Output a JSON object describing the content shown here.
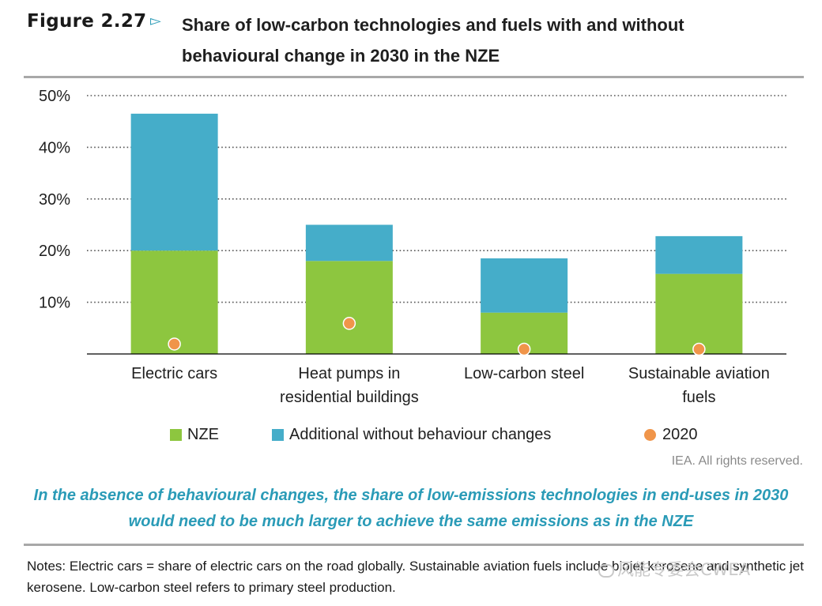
{
  "figure": {
    "number": "Figure 2.27",
    "arrow": "▻",
    "title_line1": "Share of low-carbon technologies and fuels with and without",
    "title_line2": "behavioural change in 2030 in the NZE"
  },
  "chart_data": {
    "type": "bar",
    "stacked": true,
    "categories": [
      [
        "Electric cars"
      ],
      [
        "Heat pumps in",
        "residential buildings"
      ],
      [
        "Low-carbon steel"
      ],
      [
        "Sustainable aviation",
        "fuels"
      ]
    ],
    "series": [
      {
        "name": "NZE",
        "kind": "bar",
        "color": "#8dc63f",
        "values": [
          20,
          18,
          8,
          15.5
        ]
      },
      {
        "name": "Additional without behaviour changes",
        "kind": "bar",
        "color": "#45adc9",
        "values": [
          26.5,
          7,
          10.5,
          7.3
        ]
      },
      {
        "name": "2020",
        "kind": "dot",
        "color": "#f0954a",
        "values": [
          1,
          5,
          0,
          0
        ]
      }
    ],
    "y_ticks": [
      "10%",
      "20%",
      "30%",
      "40%",
      "50%"
    ],
    "ylim": [
      0,
      50
    ],
    "grid": true,
    "legend_position": "bottom"
  },
  "legend": {
    "nze": "NZE",
    "additional": "Additional without behaviour changes",
    "y2020": "2020"
  },
  "source": "IEA. All rights reserved.",
  "caption": "In the absence of behavioural changes, the share of low-emissions technologies in end-uses in 2030 would need to be much larger to achieve the same emissions as in the NZE",
  "notes": "Notes: Electric cars = share of electric cars on the road globally. Sustainable aviation fuels include biojet kerosene and synthetic jet kerosene. Low-carbon steel refers to primary steel production.",
  "watermark": "风能专委会CWEA"
}
